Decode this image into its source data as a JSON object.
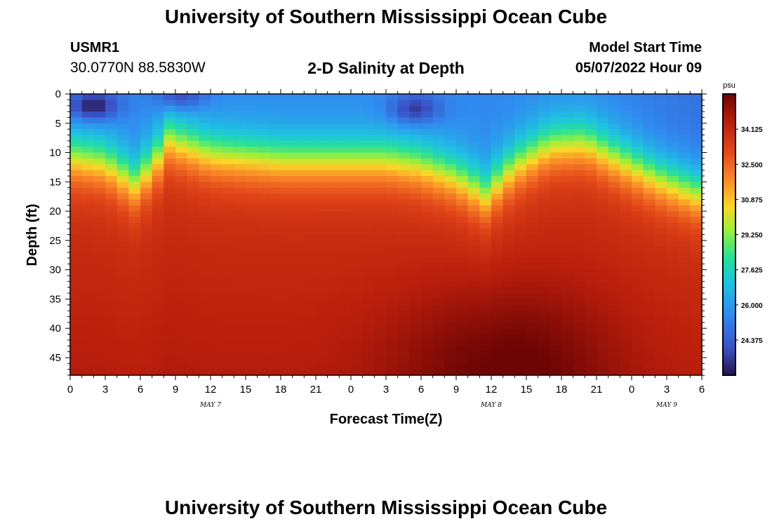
{
  "header": {
    "title_top": "University of Southern Mississippi Ocean Cube",
    "title_bottom": "University of Southern Mississippi Ocean Cube",
    "station_id": "USMR1",
    "station_coords": "30.0770N  88.5830W",
    "plot_title": "2-D Salinity at Depth",
    "model_start_label": "Model Start Time",
    "model_start_value": "05/07/2022 Hour 09"
  },
  "chart_data": {
    "type": "heatmap",
    "title": "2-D Salinity at Depth",
    "xlabel": "Forecast Time(Z)",
    "ylabel": "Depth (ft)",
    "x_tick_labels": [
      "0",
      "3",
      "6",
      "9",
      "12",
      "15",
      "18",
      "21",
      "0",
      "3",
      "6",
      "9",
      "12",
      "15",
      "18",
      "21",
      "0",
      "3",
      "6"
    ],
    "x_hours_range": [
      0,
      54
    ],
    "date_labels": [
      {
        "text": "MAY 7",
        "hour": 12
      },
      {
        "text": "MAY 8",
        "hour": 36
      },
      {
        "text": "MAY 9",
        "hour": 51
      }
    ],
    "y_ticks": [
      0,
      5,
      10,
      15,
      20,
      25,
      30,
      35,
      40,
      45
    ],
    "ylim": [
      0,
      48
    ],
    "colorbar": {
      "unit": "psu",
      "ticks": [
        "34.125",
        "32.500",
        "30.875",
        "29.250",
        "27.625",
        "26.000",
        "24.375"
      ],
      "tick_values": [
        34.125,
        32.5,
        30.875,
        29.25,
        27.625,
        26.0,
        24.375
      ],
      "range": [
        22.75,
        35.75
      ]
    },
    "halocline_depth_ft": [
      {
        "hour": 0,
        "depth": 10.5
      },
      {
        "hour": 3,
        "depth": 11.5
      },
      {
        "hour": 5.5,
        "depth": 15
      },
      {
        "hour": 7,
        "depth": 12
      },
      {
        "hour": 8.5,
        "depth": 7.5
      },
      {
        "hour": 12,
        "depth": 10
      },
      {
        "hour": 18,
        "depth": 11
      },
      {
        "hour": 27,
        "depth": 11
      },
      {
        "hour": 30,
        "depth": 12
      },
      {
        "hour": 33,
        "depth": 14
      },
      {
        "hour": 35.5,
        "depth": 17
      },
      {
        "hour": 38,
        "depth": 12
      },
      {
        "hour": 41,
        "depth": 8.5
      },
      {
        "hour": 44,
        "depth": 8
      },
      {
        "hour": 47,
        "depth": 11
      },
      {
        "hour": 50,
        "depth": 14
      },
      {
        "hour": 54,
        "depth": 17
      }
    ],
    "surface_salinity_psu": 25.5,
    "deep_salinity_psu": 33.8,
    "fresh_pockets": [
      {
        "hour": 2,
        "depth": 2,
        "salinity": 23.0
      },
      {
        "hour": 29.5,
        "depth": 2.5,
        "salinity": 23.6
      },
      {
        "hour": 9.5,
        "depth": 0,
        "salinity": 24.0
      }
    ],
    "salty_core": {
      "hour": 37,
      "depth": 46,
      "salinity": 35.4
    }
  },
  "colors": {
    "background": "#ffffff",
    "axis": "#000000"
  }
}
